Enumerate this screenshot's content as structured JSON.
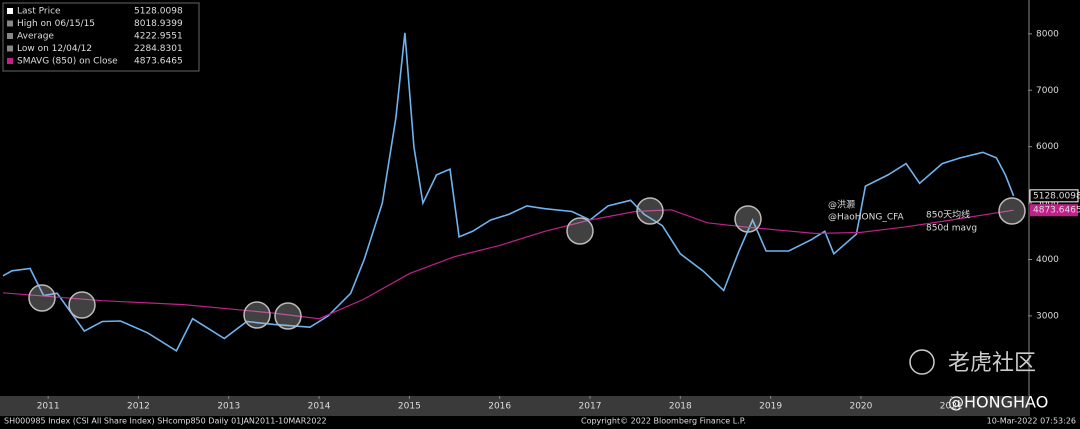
{
  "chart_data": {
    "type": "line",
    "legend": [
      {
        "label": "Last Price",
        "value": "5128.0098"
      },
      {
        "label": "High on 06/15/15",
        "value": "8018.9399"
      },
      {
        "label": "Average",
        "value": "4222.9551"
      },
      {
        "label": "Low on 12/04/12",
        "value": "2284.8301"
      },
      {
        "label": "SMAVG (850)  on Close",
        "value": "4873.6465"
      }
    ],
    "series": [
      {
        "name": "Last Price",
        "color": "#6fb3ee",
        "x": [
          2011.0,
          2011.1,
          2011.3,
          2011.45,
          2011.6,
          2011.9,
          2012.1,
          2012.3,
          2012.6,
          2012.92,
          2013.1,
          2013.45,
          2013.7,
          2014.0,
          2014.4,
          2014.6,
          2014.85,
          2015.0,
          2015.2,
          2015.35,
          2015.45,
          2015.55,
          2015.65,
          2015.8,
          2015.95,
          2016.05,
          2016.2,
          2016.4,
          2016.6,
          2016.8,
          2017.0,
          2017.3,
          2017.5,
          2017.7,
          2017.95,
          2018.1,
          2018.3,
          2018.5,
          2018.75,
          2018.98,
          2019.15,
          2019.3,
          2019.45,
          2019.7,
          2019.95,
          2020.1,
          2020.2,
          2020.45,
          2020.55,
          2020.8,
          2021.0,
          2021.15,
          2021.4,
          2021.6,
          2021.85,
          2022.0,
          2022.1,
          2022.19
        ],
        "values": [
          3710,
          3800,
          3840,
          3360,
          3400,
          2730,
          2900,
          2910,
          2700,
          2380,
          2950,
          2600,
          2900,
          2850,
          2800,
          3000,
          3400,
          4000,
          5000,
          6500,
          8019,
          6000,
          5000,
          5500,
          5600,
          4400,
          4500,
          4700,
          4800,
          4950,
          4900,
          4850,
          4700,
          4950,
          5050,
          4800,
          4600,
          4100,
          3800,
          3450,
          4150,
          4700,
          4150,
          4150,
          4350,
          4500,
          4100,
          4450,
          5300,
          5500,
          5700,
          5350,
          5700,
          5800,
          5900,
          5800,
          5500,
          5128.0098
        ]
      },
      {
        "name": "SMAVG (850)",
        "color": "#c0208a",
        "x": [
          2011.0,
          2012.1,
          2013.0,
          2014.0,
          2014.5,
          2015.0,
          2015.5,
          2016.0,
          2016.5,
          2017.0,
          2017.5,
          2018.0,
          2018.4,
          2018.8,
          2019.2,
          2019.6,
          2020.0,
          2020.5,
          2021.0,
          2021.5,
          2022.19
        ],
        "values": [
          3410,
          3270,
          3200,
          3050,
          2950,
          3300,
          3750,
          4050,
          4250,
          4500,
          4700,
          4850,
          4880,
          4650,
          4580,
          4520,
          4460,
          4480,
          4580,
          4700,
          4873.6465
        ]
      }
    ],
    "xlim": [
      2011,
      2022.35
    ],
    "xticks": [
      {
        "value": 2011.5,
        "label": "2011"
      },
      {
        "value": 2012.5,
        "label": "2012"
      },
      {
        "value": 2013.5,
        "label": "2013"
      },
      {
        "value": 2014.5,
        "label": "2014"
      },
      {
        "value": 2015.5,
        "label": "2015"
      },
      {
        "value": 2016.5,
        "label": "2016"
      },
      {
        "value": 2017.5,
        "label": "2017"
      },
      {
        "value": 2018.5,
        "label": "2018"
      },
      {
        "value": 2019.5,
        "label": "2019"
      },
      {
        "value": 2020.5,
        "label": "2020"
      },
      {
        "value": 2021.5,
        "label": "2021"
      }
    ],
    "ylim": [
      1580,
      8600
    ],
    "yticks": [
      3000,
      4000,
      5000,
      6000,
      7000,
      8000
    ],
    "annotations": [
      "@洪灏",
      "@HaoHONG_CFA",
      "850天均线",
      "850d mavg"
    ],
    "footer": [
      "SH000985 Index (CSI All Share Index) SHcomp850  Daily 01JAN2011-10MAR2022",
      "Copyright© 2022 Bloomberg Finance L.P.",
      "10-Mar-2022 07:53:26"
    ],
    "watermarks": [
      "老虎社区",
      "@HONGHAO"
    ]
  }
}
